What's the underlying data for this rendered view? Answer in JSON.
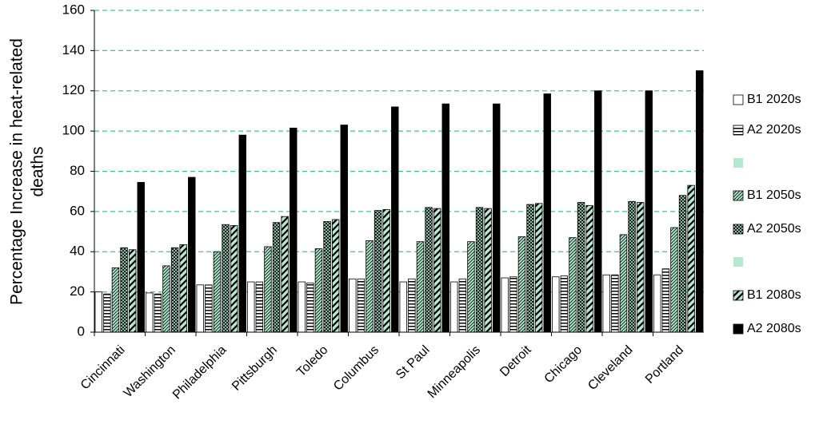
{
  "chart_data": {
    "type": "bar",
    "ylabel": [
      "Percentage Increase in heat-related",
      "deaths"
    ],
    "categories": [
      "Cincinnati",
      "Washington",
      "Philadelphia",
      "Pittsburgh",
      "Toledo",
      "Columbus",
      "St Paul",
      "Minneapolis",
      "Detroit",
      "Chicago",
      "Cleveland",
      "Portland"
    ],
    "series": [
      {
        "name": "B1 2020s",
        "color": "#ffffff",
        "pattern": "none",
        "values": [
          20,
          19.5,
          23.5,
          25,
          25,
          26.5,
          25,
          25,
          27,
          27.5,
          28.5,
          28.5
        ]
      },
      {
        "name": "A2 2020s",
        "color": "#ffffff",
        "pattern": "horizontal",
        "values": [
          19,
          19,
          23.5,
          25,
          24.5,
          26.5,
          26.5,
          26.5,
          27.5,
          28,
          28.5,
          31.5
        ]
      },
      {
        "name": "B1 2050s",
        "color": "#b5e8cf",
        "pattern": "diagonal",
        "values": [
          32,
          33,
          40,
          42.5,
          41.5,
          45.5,
          45,
          45,
          47.5,
          47,
          48.5,
          52
        ]
      },
      {
        "name": "A2 2050s",
        "color": "#b5e8cf",
        "pattern": "cross",
        "values": [
          42,
          42,
          53.5,
          54.5,
          55,
          60.5,
          62,
          62,
          63.5,
          64.5,
          65,
          68
        ]
      },
      {
        "name": "B1 2080s",
        "color": "#b5e8cf",
        "pattern": "stripe",
        "values": [
          41,
          43.5,
          53,
          57.5,
          56,
          61,
          61.5,
          61.5,
          64,
          63,
          64.5,
          73
        ]
      },
      {
        "name": "A2 2080s",
        "color": "#000000",
        "pattern": "none",
        "values": [
          74.5,
          77,
          98,
          101.5,
          103,
          112,
          113.5,
          113.5,
          118.5,
          120,
          120,
          130
        ]
      }
    ],
    "ylim": [
      0,
      160
    ],
    "yticks": [
      0,
      20,
      40,
      60,
      80,
      100,
      120,
      140,
      160
    ],
    "grid": true,
    "grid_color": "#3cc98a",
    "legend": "right"
  }
}
